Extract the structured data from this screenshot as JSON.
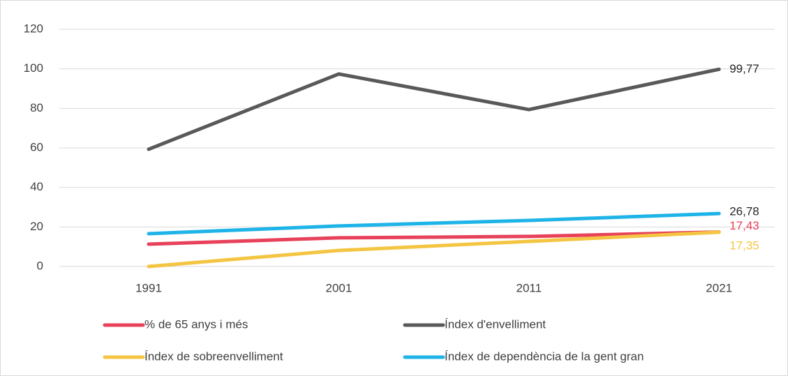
{
  "chart_data": {
    "type": "line",
    "categories": [
      "1991",
      "2001",
      "2011",
      "2021"
    ],
    "series": [
      {
        "name": "% de 65 anys i més",
        "color": "#e8415a",
        "label_color": "#e8415a",
        "values": [
          11.3,
          14.5,
          15.2,
          17.43
        ],
        "value_labels": [
          null,
          null,
          null,
          "17,43"
        ]
      },
      {
        "name": "Índex d'envelliment",
        "color": "#595959",
        "label_color": "#262626",
        "values": [
          59.3,
          97.4,
          79.4,
          99.77
        ],
        "value_labels": [
          null,
          null,
          null,
          "99,77"
        ]
      },
      {
        "name": "Índex de sobreenvelliment",
        "color": "#f4c542",
        "label_color": "#f4c542",
        "values": [
          0,
          8.1,
          12.7,
          17.35
        ],
        "value_labels": [
          null,
          null,
          null,
          "17,35"
        ]
      },
      {
        "name": "Índex de dependència de la gent gran",
        "color": "#1eb4e8",
        "label_color": "#262626",
        "values": [
          16.6,
          20.5,
          23.3,
          26.78
        ],
        "value_labels": [
          null,
          null,
          null,
          "26,78"
        ]
      }
    ],
    "ylim": [
      0,
      120
    ],
    "yticks": [
      0,
      20,
      40,
      60,
      80,
      100,
      120
    ],
    "grid": true,
    "legend": "bottom"
  }
}
